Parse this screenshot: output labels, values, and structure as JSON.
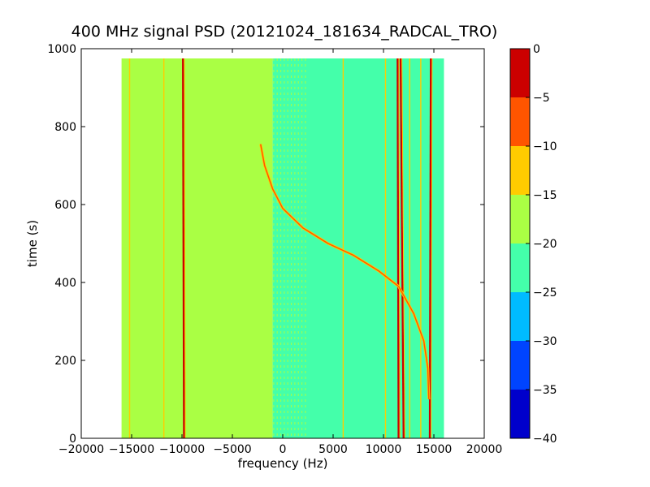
{
  "chart_data": {
    "type": "heatmap",
    "title": "400 MHz signal PSD (20121024_181634_RADCAL_TRO)",
    "xlabel": "frequency (Hz)",
    "ylabel": "time (s)",
    "xlim": [
      -20000,
      20000
    ],
    "ylim": [
      0,
      1000
    ],
    "x_ticks": [
      "−20000",
      "−15000",
      "−10000",
      "−5000",
      "0",
      "5000",
      "10000",
      "15000",
      "20000"
    ],
    "x_tick_values": [
      -20000,
      -15000,
      -10000,
      -5000,
      0,
      5000,
      10000,
      15000,
      20000
    ],
    "y_ticks": [
      "0",
      "200",
      "400",
      "600",
      "800",
      "1000"
    ],
    "y_tick_values": [
      0,
      200,
      400,
      600,
      800,
      1000
    ],
    "data_extent": {
      "x": [
        -16000,
        16000
      ],
      "y": [
        0,
        975
      ]
    },
    "background_level": {
      "x_ranges": [
        [
          -16000,
          -1000,
          -17.5
        ],
        [
          -1000,
          2500,
          -20
        ],
        [
          2500,
          16000,
          -22.5
        ]
      ]
    },
    "vertical_lines": [
      {
        "x": -15200,
        "level": -12.5
      },
      {
        "x": -11800,
        "level": -12.5
      },
      {
        "x": -9800,
        "level": -2.5,
        "x_at_top": -9900
      },
      {
        "x": 6000,
        "level": -12.5
      },
      {
        "x": 10200,
        "level": -12.5
      },
      {
        "x": 11500,
        "level": -2.5,
        "x_at_top": 11400
      },
      {
        "x": 12000,
        "level": -2.5,
        "x_at_top": 11700
      },
      {
        "x": 12600,
        "level": -12.5
      },
      {
        "x": 13700,
        "level": -12.5
      },
      {
        "x": 14600,
        "level": -2.5,
        "x_at_top": 14700
      }
    ],
    "chirp_curve": {
      "level": -7.5,
      "points": [
        [
          -2200,
          755
        ],
        [
          -1800,
          700
        ],
        [
          -1000,
          640
        ],
        [
          0,
          590
        ],
        [
          2000,
          540
        ],
        [
          4500,
          500
        ],
        [
          7000,
          470
        ],
        [
          9500,
          430
        ],
        [
          11500,
          390
        ],
        [
          13000,
          320
        ],
        [
          14000,
          250
        ],
        [
          14400,
          180
        ],
        [
          14500,
          100
        ]
      ]
    },
    "colorbar": {
      "levels": [
        -40,
        -35,
        -30,
        -25,
        -20,
        -15,
        -10,
        -5,
        0
      ],
      "tick_labels": [
        "−40",
        "−35",
        "−30",
        "−25",
        "−20",
        "−15",
        "−10",
        "−5",
        "0"
      ],
      "colors": [
        "#0000cc",
        "#0044ff",
        "#00bbff",
        "#44ffaa",
        "#aaff44",
        "#ffcc00",
        "#ff5500",
        "#cc0000"
      ]
    },
    "grid": false
  }
}
